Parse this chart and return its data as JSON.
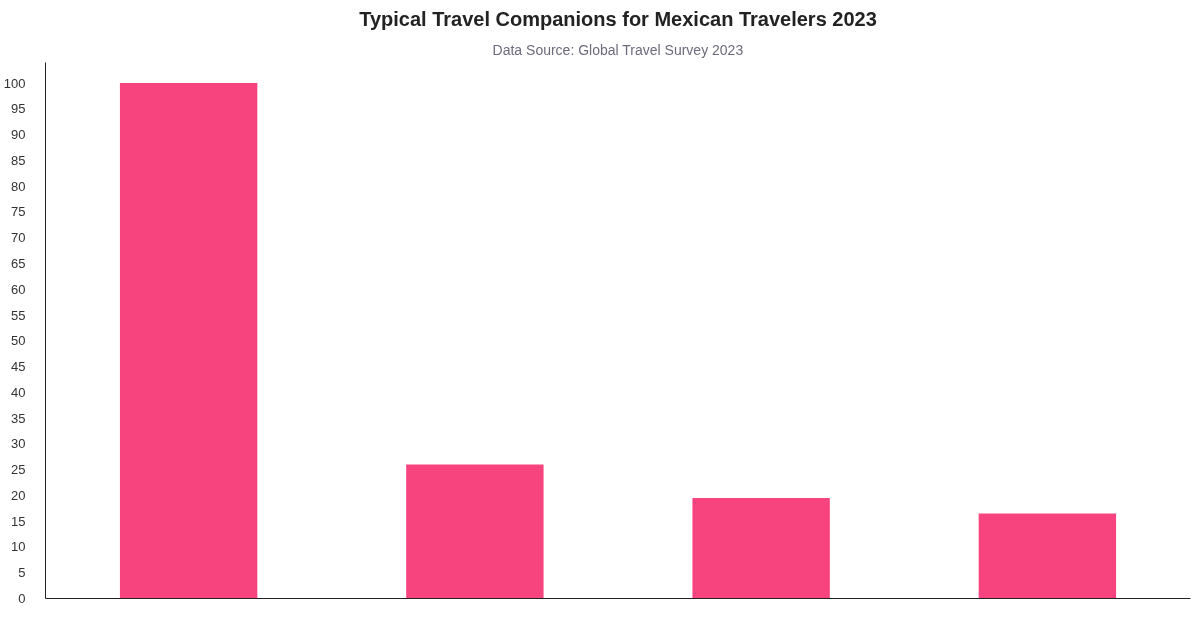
{
  "chart_data": {
    "type": "bar",
    "title": "Typical Travel Companions for Mexican Travelers 2023",
    "subtitle": "Data Source: Global Travel Survey 2023",
    "categories": [
      null,
      null,
      null,
      null
    ],
    "values": [
      100,
      26,
      19.5,
      16.5
    ],
    "color": "#f7447f",
    "ylim": [
      0,
      104
    ],
    "yticks": [
      0,
      5,
      10,
      15,
      20,
      25,
      30,
      35,
      40,
      45,
      50,
      55,
      60,
      65,
      70,
      75,
      80,
      85,
      90,
      95,
      100
    ],
    "tick_labels": "y",
    "grid": false
  }
}
